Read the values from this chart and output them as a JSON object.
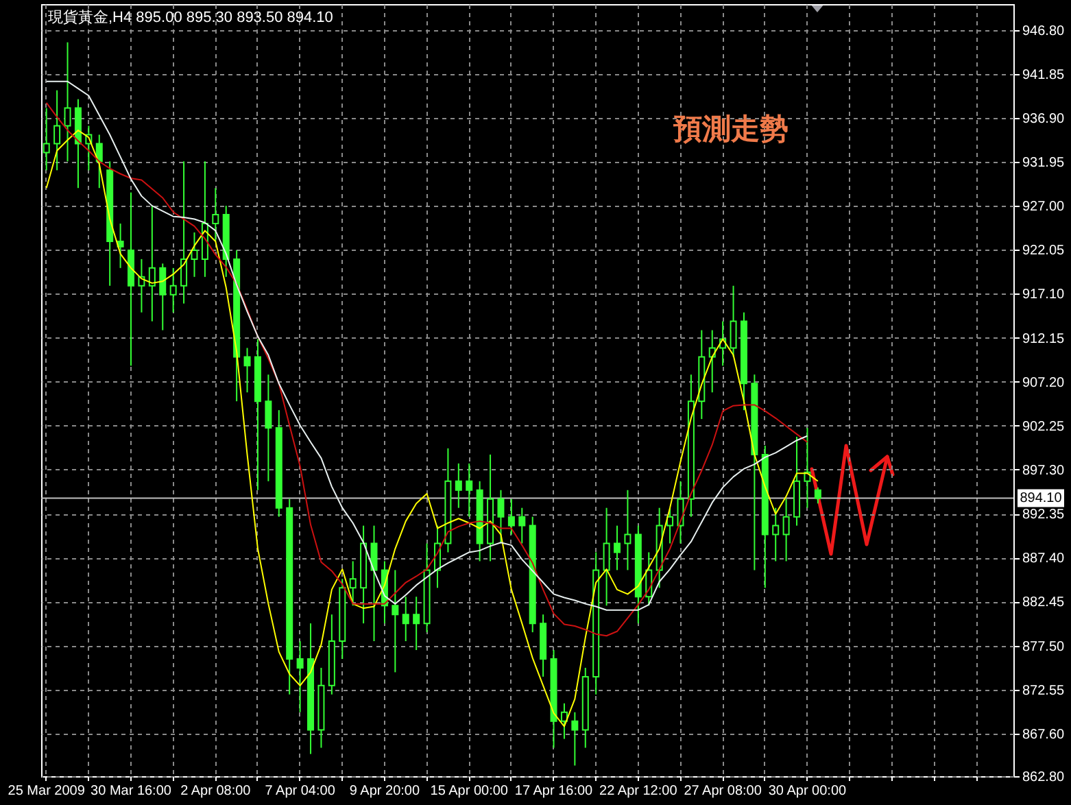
{
  "chart_data": {
    "type": "candlestick",
    "title": "現貨黃金,H4 895.00 895.30 893.50 894.10",
    "annotations": [
      "預測走勢"
    ],
    "categories": [
      "25 Mar 2009",
      null,
      null,
      null,
      null,
      null,
      null,
      null,
      "30 Mar 16:00",
      null,
      null,
      null,
      null,
      null,
      null,
      null,
      "2 Apr 08:00",
      null,
      null,
      null,
      null,
      null,
      null,
      null,
      "7 Apr 04:00",
      null,
      null,
      null,
      null,
      null,
      null,
      null,
      "9 Apr 20:00",
      null,
      null,
      null,
      null,
      null,
      null,
      null,
      "15 Apr 00:00",
      null,
      null,
      null,
      null,
      null,
      null,
      null,
      "17 Apr 16:00",
      null,
      null,
      null,
      null,
      null,
      null,
      null,
      "22 Apr 12:00",
      null,
      null,
      null,
      null,
      null,
      null,
      null,
      "27 Apr 08:00",
      null,
      null,
      null,
      null,
      null,
      null,
      null,
      "30 Apr 00:00",
      null,
      null,
      null,
      null,
      null,
      null,
      null,
      null,
      null,
      null,
      null,
      null,
      null,
      null,
      null,
      null,
      null,
      null,
      null
    ],
    "ylim": [
      862.8,
      949.7
    ],
    "yticks": [
      {
        "value": 946.8,
        "label": "946.80"
      },
      {
        "value": 941.85,
        "label": "941.85"
      },
      {
        "value": 936.9,
        "label": "936.90"
      },
      {
        "value": 931.95,
        "label": "931.95"
      },
      {
        "value": 927,
        "label": "927.00"
      },
      {
        "value": 922.05,
        "label": "922.05"
      },
      {
        "value": 917.1,
        "label": "917.10"
      },
      {
        "value": 912.15,
        "label": "912.15"
      },
      {
        "value": 907.2,
        "label": "907.20"
      },
      {
        "value": 902.25,
        "label": "902.25"
      },
      {
        "value": 897.3,
        "label": "897.30"
      },
      {
        "value": 892.35,
        "label": "892.35"
      },
      {
        "value": 887.4,
        "label": "887.40"
      },
      {
        "value": 882.45,
        "label": "882.45"
      },
      {
        "value": 877.5,
        "label": "877.50"
      },
      {
        "value": 872.55,
        "label": "872.55"
      },
      {
        "value": 867.6,
        "label": "867.60"
      },
      {
        "value": 862.8,
        "label": "862.80"
      }
    ],
    "grid": true,
    "ref_lines": [
      {
        "axis": "y",
        "value": 894.1,
        "label": "894.10",
        "color": "#c0c0c0"
      }
    ],
    "series": [
      {
        "type": "candlestick",
        "color": "#33ff33",
        "ohlc": [
          [
            933,
            938,
            931,
            934
          ],
          [
            934,
            940,
            931,
            936
          ],
          [
            936,
            945.4,
            932,
            938
          ],
          [
            938,
            939,
            929,
            934
          ],
          [
            934,
            936,
            931,
            935
          ],
          [
            934,
            935,
            929,
            932
          ],
          [
            931,
            932,
            918,
            923
          ],
          [
            923,
            925,
            920,
            922.4
          ],
          [
            922,
            928.5,
            909,
            918
          ],
          [
            918,
            921,
            915,
            919
          ],
          [
            918,
            927,
            914,
            920
          ],
          [
            920,
            920.5,
            913,
            917
          ],
          [
            917,
            920,
            915,
            918
          ],
          [
            918,
            932,
            916,
            921
          ],
          [
            921,
            924,
            919,
            922
          ],
          [
            921,
            932,
            919,
            925
          ],
          [
            925,
            929,
            923,
            926
          ],
          [
            926,
            927,
            919,
            921
          ],
          [
            921,
            922,
            905,
            910
          ],
          [
            910,
            911,
            906,
            909
          ],
          [
            910,
            912,
            895,
            905
          ],
          [
            905,
            908,
            896,
            902
          ],
          [
            902,
            904,
            892,
            893
          ],
          [
            893,
            894,
            872,
            876
          ],
          [
            876,
            878,
            870,
            875
          ],
          [
            876,
            880,
            865.3,
            868
          ],
          [
            868,
            875,
            866,
            873
          ],
          [
            873,
            881,
            872,
            878
          ],
          [
            878,
            885,
            876,
            884
          ],
          [
            884,
            887,
            882,
            885
          ],
          [
            884,
            891,
            880,
            889
          ],
          [
            889,
            891,
            878,
            886
          ],
          [
            886,
            887,
            880,
            882
          ],
          [
            882,
            886,
            874.5,
            881
          ],
          [
            881,
            883,
            878,
            880
          ],
          [
            881,
            883,
            877,
            880
          ],
          [
            880,
            889,
            879,
            886
          ],
          [
            886,
            891,
            884,
            889
          ],
          [
            889,
            899.7,
            888,
            896
          ],
          [
            896,
            898,
            893,
            895
          ],
          [
            896,
            898,
            892,
            895
          ],
          [
            895,
            896,
            887,
            889
          ],
          [
            889,
            899,
            887,
            894
          ],
          [
            894,
            895,
            889,
            892
          ],
          [
            892,
            894,
            890,
            891
          ],
          [
            892,
            893,
            889,
            891
          ],
          [
            891,
            892,
            879,
            880
          ],
          [
            880,
            881,
            874,
            876
          ],
          [
            876,
            877,
            866,
            869
          ],
          [
            869,
            871,
            867,
            870
          ],
          [
            869,
            870,
            864,
            868
          ],
          [
            868,
            875,
            866,
            874
          ],
          [
            874,
            888,
            872,
            886
          ],
          [
            886,
            893,
            882,
            889
          ],
          [
            889,
            891,
            886,
            888
          ],
          [
            889,
            895,
            886,
            890
          ],
          [
            890,
            891,
            880,
            883
          ],
          [
            883,
            888,
            882,
            886
          ],
          [
            886,
            893,
            884,
            891
          ],
          [
            891,
            893,
            889,
            892
          ],
          [
            891,
            896,
            889,
            894
          ],
          [
            894,
            908,
            892,
            905
          ],
          [
            905,
            913,
            903,
            910
          ],
          [
            910,
            913,
            906,
            911
          ],
          [
            911,
            914,
            909,
            912
          ],
          [
            911,
            918,
            910,
            914
          ],
          [
            914,
            915,
            904,
            907
          ],
          [
            907,
            908,
            886,
            899
          ],
          [
            899,
            900,
            884,
            890
          ],
          [
            890,
            893,
            887,
            891
          ],
          [
            890,
            894,
            887,
            892
          ],
          [
            892,
            901,
            891,
            896
          ],
          [
            896,
            902,
            893,
            897
          ],
          [
            895,
            895.3,
            893.5,
            894.1
          ],
          null,
          null,
          null,
          null,
          null,
          null,
          null,
          null,
          null,
          null,
          null,
          null,
          null,
          null,
          null,
          null,
          null,
          null
        ]
      },
      {
        "type": "line",
        "color": "#ffff00",
        "values": [
          929,
          933.2,
          934.4,
          935.5,
          934.7,
          931.7,
          925.5,
          921.6,
          920,
          918.8,
          918.3,
          918.5,
          919.3,
          920.4,
          922.5,
          924.2,
          923,
          917.8,
          910.6,
          899,
          888.4,
          882.2,
          876.8,
          874.3,
          873,
          874.5,
          877.6,
          883.8,
          886.1,
          882.2,
          881.7,
          881.9,
          884.3,
          888.4,
          891.5,
          893.5,
          894.6,
          890.7,
          891.3,
          891.8,
          891.3,
          890.7,
          891.5,
          890,
          883.8,
          880,
          876.1,
          873,
          869.9,
          868.4,
          871.5,
          878.4,
          884.6,
          886.1,
          883.8,
          883.3,
          884.2,
          886.3,
          888.4,
          893,
          898.2,
          903.1,
          906.9,
          910,
          912,
          910.2,
          905,
          899,
          895.4,
          892.3,
          894.3,
          896.9,
          896.9,
          896,
          null,
          null,
          null,
          null,
          null,
          null,
          null,
          null,
          null,
          null,
          null,
          null,
          null,
          null,
          null,
          null,
          null,
          null
        ]
      },
      {
        "type": "line",
        "color": "#cc1111",
        "values": [
          938.6,
          937,
          935.5,
          934.3,
          933.2,
          932,
          931.2,
          930.6,
          930.1,
          929.9,
          928.9,
          927.9,
          926.3,
          925.5,
          924.7,
          923.3,
          921.5,
          920.1,
          918.2,
          915.3,
          912.3,
          909.8,
          907,
          902.3,
          897.7,
          891.1,
          886.9,
          885.9,
          884.4,
          882.2,
          882.2,
          882.2,
          882.2,
          883.4,
          884.6,
          885.3,
          886.1,
          887.9,
          890.3,
          890.9,
          891.3,
          891.5,
          891.3,
          890.7,
          890.7,
          888.8,
          886.8,
          883.8,
          881.1,
          879.9,
          879.7,
          879.3,
          878.8,
          878.6,
          879.1,
          880.6,
          882.1,
          883.8,
          886.1,
          888.4,
          891.5,
          894.6,
          897.2,
          900.1,
          903.9,
          904.5,
          904.6,
          904.6,
          903.9,
          903.1,
          902.2,
          901.3,
          900.4,
          null,
          null,
          null,
          null,
          null,
          null,
          null,
          null,
          null,
          null,
          null,
          null,
          null,
          null,
          null,
          null,
          null,
          null,
          null
        ]
      },
      {
        "type": "line",
        "color": "#e8f0f0",
        "values": [
          941,
          941,
          941,
          940.2,
          939.4,
          937.2,
          935,
          932.5,
          930,
          928.1,
          927,
          926.4,
          925.8,
          925.7,
          925.5,
          925.1,
          924.2,
          921.6,
          918.1,
          915.1,
          912.3,
          910.2,
          907,
          904.6,
          902.3,
          900.4,
          898.6,
          895.4,
          893,
          891.3,
          889.1,
          885.9,
          883.1,
          882.2,
          883.2,
          884.3,
          885.2,
          886.1,
          886.8,
          887.4,
          888,
          888.2,
          888.7,
          889.1,
          888.8,
          887.2,
          885.9,
          884.6,
          883.3,
          882.9,
          882.6,
          882.2,
          881.9,
          881.5,
          881.5,
          881.5,
          881.5,
          882.1,
          884.7,
          886.1,
          887.7,
          889.2,
          891.4,
          893.6,
          895.3,
          896.5,
          897.4,
          897.9,
          898.7,
          899.2,
          899.9,
          900.6,
          901.1,
          null,
          null,
          null,
          null,
          null,
          null,
          null,
          null,
          null,
          null,
          null,
          null,
          null,
          null,
          null,
          null,
          null,
          null,
          null
        ]
      }
    ]
  }
}
